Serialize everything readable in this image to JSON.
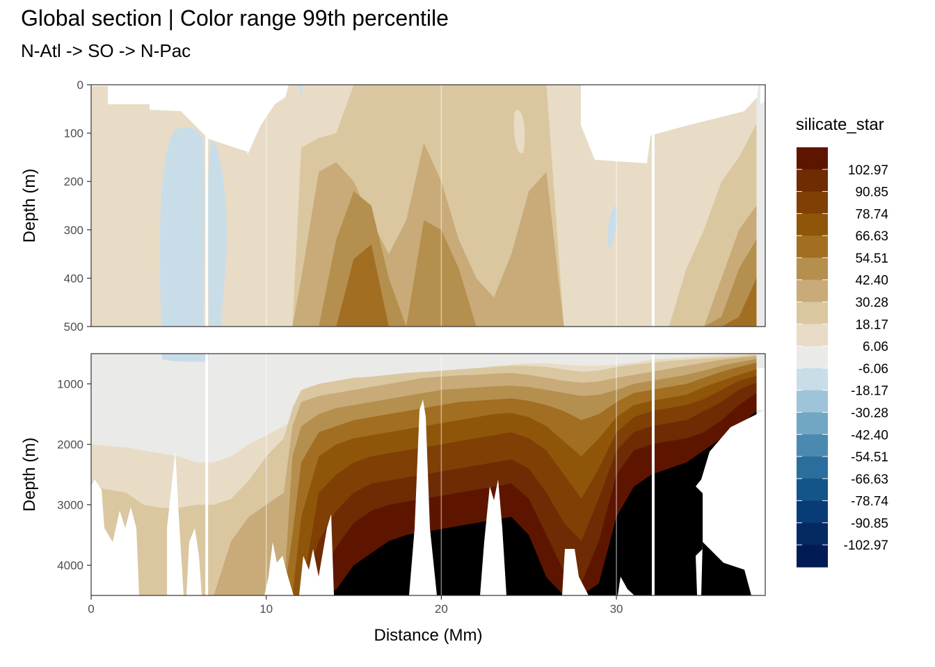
{
  "chart_data": {
    "type": "heatmap",
    "title": "Global section | Color range 99th percentile",
    "subtitle": "N-Atl -> SO -> N-Pac",
    "xlabel": "Distance (Mm)",
    "xlim": [
      0,
      38.5
    ],
    "x_ticks": [
      "0",
      "10",
      "20",
      "30"
    ],
    "panels": [
      {
        "ylabel": "Depth (m)",
        "ylim": [
          0,
          500
        ],
        "y_ticks": [
          "0",
          "100",
          "200",
          "300",
          "400",
          "500"
        ]
      },
      {
        "ylabel": "Depth (m)",
        "ylim": [
          500,
          4500
        ],
        "y_ticks": [
          "1000",
          "2000",
          "3000",
          "4000"
        ]
      }
    ],
    "legend": {
      "title": "silicate_star",
      "placement": "right",
      "labels": [
        "102.97",
        "90.85",
        "78.74",
        "66.63",
        "54.51",
        "42.40",
        "30.28",
        "18.17",
        "6.06",
        "-6.06",
        "-18.17",
        "-30.28",
        "-42.40",
        "-54.51",
        "-66.63",
        "-78.74",
        "-90.85",
        "-102.97"
      ],
      "colors": [
        "#5e1500",
        "#6e2b04",
        "#7f3f05",
        "#8f560a",
        "#a26e22",
        "#b58f4d",
        "#c8ab78",
        "#dac7a0",
        "#e8dcc6",
        "#eaebe8",
        "#c9dde9",
        "#9fc4d9",
        "#72a7c4",
        "#4a8ab1",
        "#2a6e9e",
        "#135589",
        "#083c76",
        "#042a63",
        "#021b54"
      ]
    },
    "sections": {
      "x_knots": [
        0,
        2,
        3,
        4,
        5,
        6,
        7,
        8,
        9,
        10,
        11,
        11.5,
        12,
        13,
        14,
        15,
        16,
        17,
        18,
        19,
        20,
        21,
        22,
        23,
        24,
        25,
        26,
        27,
        28,
        29,
        30,
        31,
        32,
        33,
        34,
        35,
        36,
        37,
        38
      ],
      "upper_boundaries_depth_m": [
        [
          0,
          0,
          0,
          0,
          0,
          0,
          0,
          0,
          0,
          0,
          0,
          0,
          0,
          0,
          0,
          0,
          0,
          0,
          0,
          0,
          0,
          0,
          0,
          0,
          0,
          0,
          0,
          0,
          0,
          0,
          0,
          0,
          0,
          0,
          0,
          0,
          0,
          0,
          0
        ],
        [
          500,
          500,
          500,
          500,
          500,
          500,
          500,
          500,
          500,
          500,
          500,
          500,
          130,
          110,
          100,
          0,
          0,
          0,
          0,
          0,
          0,
          0,
          0,
          0,
          0,
          0,
          0,
          500,
          500,
          500,
          500,
          500,
          500,
          500,
          380,
          300,
          200,
          150,
          80
        ],
        [
          500,
          500,
          500,
          500,
          500,
          500,
          500,
          500,
          500,
          500,
          500,
          500,
          400,
          180,
          160,
          200,
          280,
          350,
          280,
          120,
          200,
          320,
          400,
          440,
          350,
          220,
          180,
          500,
          500,
          500,
          500,
          500,
          500,
          500,
          500,
          500,
          400,
          300,
          250
        ],
        [
          500,
          500,
          500,
          500,
          500,
          500,
          500,
          500,
          500,
          500,
          500,
          500,
          500,
          500,
          320,
          220,
          250,
          400,
          500,
          280,
          300,
          380,
          500,
          500,
          500,
          500,
          500,
          500,
          500,
          500,
          500,
          500,
          500,
          500,
          500,
          500,
          480,
          380,
          320
        ],
        [
          500,
          500,
          500,
          500,
          500,
          500,
          500,
          500,
          500,
          500,
          500,
          500,
          500,
          500,
          500,
          360,
          330,
          500,
          500,
          500,
          500,
          500,
          500,
          500,
          500,
          500,
          500,
          500,
          500,
          500,
          500,
          500,
          500,
          500,
          500,
          500,
          500,
          480,
          400
        ]
      ],
      "lower_boundaries_depth_m": [
        [
          2000,
          2050,
          2100,
          2150,
          2200,
          2300,
          2300,
          2200,
          2000,
          1850,
          1700,
          1600,
          1500,
          1350,
          1250,
          1200,
          1150,
          1100,
          1000,
          900,
          850,
          800,
          750,
          700,
          680,
          660,
          660,
          680,
          700,
          700,
          680,
          650,
          600,
          580,
          560,
          540,
          520,
          510,
          500
        ],
        [
          2700,
          2800,
          3000,
          3050,
          3050,
          3000,
          3000,
          2900,
          2600,
          2200,
          1900,
          1400,
          1100,
          1000,
          950,
          900,
          880,
          850,
          820,
          800,
          780,
          760,
          740,
          720,
          700,
          700,
          720,
          760,
          800,
          780,
          720,
          680,
          650,
          620,
          600,
          580,
          560,
          540,
          520
        ],
        [
          4500,
          4500,
          4500,
          4500,
          4500,
          4500,
          4500,
          3600,
          3200,
          3000,
          2800,
          1700,
          1300,
          1200,
          1150,
          1100,
          1050,
          1000,
          950,
          900,
          880,
          860,
          850,
          830,
          820,
          850,
          900,
          950,
          980,
          960,
          900,
          850,
          800,
          750,
          700,
          650,
          600,
          570,
          540
        ],
        [
          4500,
          4500,
          4500,
          4500,
          4500,
          4500,
          4500,
          4500,
          4500,
          4500,
          4500,
          2200,
          1700,
          1500,
          1400,
          1350,
          1300,
          1250,
          1200,
          1150,
          1100,
          1080,
          1060,
          1040,
          1030,
          1050,
          1100,
          1150,
          1200,
          1180,
          1100,
          1000,
          950,
          900,
          850,
          780,
          700,
          640,
          590
        ],
        [
          4500,
          4500,
          4500,
          4500,
          4500,
          4500,
          4500,
          4500,
          4500,
          4500,
          4500,
          3500,
          2300,
          1800,
          1700,
          1600,
          1550,
          1500,
          1450,
          1400,
          1350,
          1300,
          1280,
          1260,
          1240,
          1280,
          1350,
          1450,
          1600,
          1500,
          1300,
          1150,
          1100,
          1050,
          1000,
          900,
          800,
          720,
          650
        ],
        [
          4500,
          4500,
          4500,
          4500,
          4500,
          4500,
          4500,
          4500,
          4500,
          4500,
          4500,
          4500,
          3200,
          2200,
          2000,
          1900,
          1850,
          1800,
          1750,
          1700,
          1650,
          1600,
          1550,
          1500,
          1480,
          1550,
          1700,
          1950,
          2200,
          1900,
          1550,
          1350,
          1280,
          1230,
          1180,
          1050,
          950,
          850,
          760
        ],
        [
          4500,
          4500,
          4500,
          4500,
          4500,
          4500,
          4500,
          4500,
          4500,
          4500,
          4500,
          4500,
          4500,
          2800,
          2500,
          2300,
          2200,
          2150,
          2100,
          2050,
          2000,
          1950,
          1900,
          1850,
          1800,
          1900,
          2100,
          2500,
          2900,
          2400,
          1800,
          1550,
          1450,
          1400,
          1350,
          1250,
          1100,
          950,
          870
        ],
        [
          4500,
          4500,
          4500,
          4500,
          4500,
          4500,
          4500,
          4500,
          4500,
          4500,
          4500,
          4500,
          4500,
          3600,
          3100,
          2800,
          2650,
          2600,
          2550,
          2500,
          2450,
          2400,
          2350,
          2300,
          2250,
          2400,
          2800,
          3300,
          3600,
          2900,
          2100,
          1800,
          1700,
          1650,
          1600,
          1450,
          1300,
          1100,
          980
        ],
        [
          4500,
          4500,
          4500,
          4500,
          4500,
          4500,
          4500,
          4500,
          4500,
          4500,
          4500,
          4500,
          4500,
          4300,
          3700,
          3300,
          3100,
          3000,
          2950,
          2900,
          2850,
          2800,
          2750,
          2700,
          2650,
          2900,
          3500,
          4100,
          4300,
          3600,
          2500,
          2100,
          2000,
          1950,
          1900,
          1800,
          1600,
          1350,
          1150
        ],
        [
          4500,
          4500,
          4500,
          4500,
          4500,
          4500,
          4500,
          4500,
          4500,
          4500,
          4500,
          4500,
          4500,
          4500,
          4400,
          4000,
          3800,
          3600,
          3500,
          3450,
          3400,
          3350,
          3300,
          3250,
          3200,
          3500,
          4200,
          4500,
          4500,
          4300,
          3200,
          2700,
          2500,
          2400,
          2300,
          2100,
          1900,
          1700,
          1450
        ]
      ]
    }
  }
}
